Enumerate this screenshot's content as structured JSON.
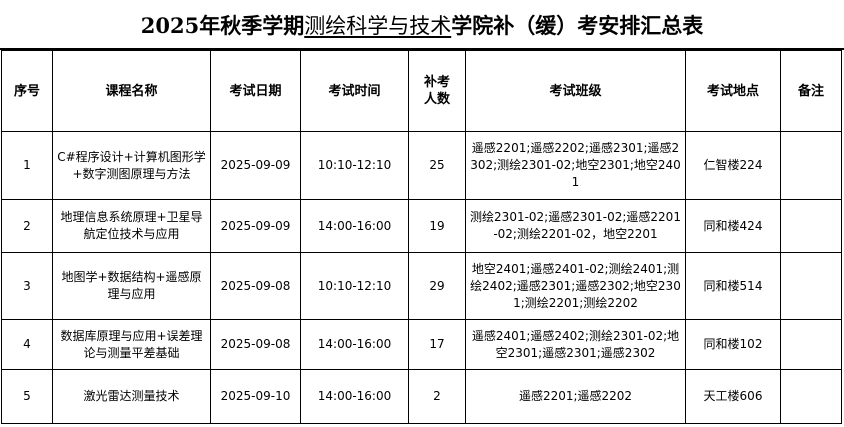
{
  "title": {
    "prefix": "2025年秋季学期",
    "college": "测绘科学与技术",
    "suffix": "学院补（缓）考安排汇总表"
  },
  "headers": [
    "序号",
    "课程名称",
    "考试日期",
    "考试时间",
    "补考人数",
    "考试班级",
    "考试地点",
    "备注"
  ],
  "rows": [
    {
      "no": "1",
      "course": "C#程序设计+计算机图形学+数字测图原理与方法",
      "date": "2025-09-09",
      "time": "10:10-12:10",
      "count": "25",
      "classes": "遥感2201;遥感2202;遥感2301;遥感2302;测绘2301-02;地空2301;地空2401",
      "place": "仁智楼224",
      "note": ""
    },
    {
      "no": "2",
      "course": "地理信息系统原理+卫星导航定位技术与应用",
      "date": "2025-09-09",
      "time": "14:00-16:00",
      "count": "19",
      "classes": "测绘2301-02;遥感2301-02;遥感2201-02;测绘2201-02，地空2201",
      "place": "同和楼424",
      "note": ""
    },
    {
      "no": "3",
      "course": "地图学+数据结构+遥感原理与应用",
      "date": "2025-09-08",
      "time": "10:10-12:10",
      "count": "29",
      "classes": "地空2401;遥感2401-02;测绘2401;测绘2402;遥感2301;遥感2302;地空2301;测绘2201;测绘2202",
      "place": "同和楼514",
      "note": ""
    },
    {
      "no": "4",
      "course": "数据库原理与应用+误差理论与测量平差基础",
      "date": "2025-09-08",
      "time": "14:00-16:00",
      "count": "17",
      "classes": "遥感2401;遥感2402;测绘2301-02;地空2301;遥感2301;遥感2302",
      "place": "同和楼102",
      "note": ""
    },
    {
      "no": "5",
      "course": "激光雷达测量技术",
      "date": "2025-09-10",
      "time": "14:00-16:00",
      "count": "2",
      "classes": "遥感2201;遥感2202",
      "place": "天工楼606",
      "note": ""
    }
  ]
}
